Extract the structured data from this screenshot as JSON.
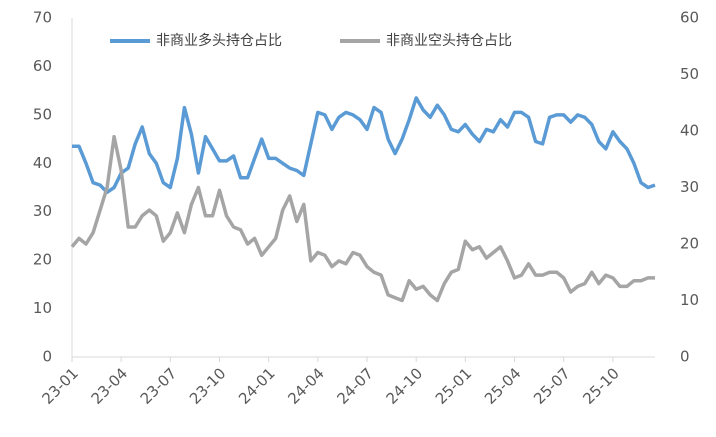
{
  "chart_data": {
    "type": "line",
    "categories": [
      "23-01",
      null,
      null,
      null,
      null,
      null,
      null,
      "23-04",
      null,
      null,
      null,
      null,
      null,
      null,
      "23-07",
      null,
      null,
      null,
      null,
      null,
      null,
      "23-10",
      null,
      null,
      null,
      null,
      null,
      null,
      "24-01",
      null,
      null,
      null,
      null,
      null,
      null,
      "24-04",
      null,
      null,
      null,
      null,
      null,
      null,
      "24-07",
      null,
      null,
      null,
      null,
      null,
      null,
      "24-10",
      null,
      null,
      null,
      null,
      null,
      null,
      "25-01",
      null,
      null,
      null,
      null,
      null,
      null,
      "25-04",
      null,
      null,
      null,
      null,
      null,
      null,
      "25-07",
      null,
      null,
      null,
      null,
      null,
      null,
      "25-10",
      null,
      null,
      null,
      null,
      null,
      null
    ],
    "series": [
      {
        "name": "非商业多头持仓占比",
        "color": "#5b9bd5",
        "axis": "y",
        "values": [
          43.5,
          43.5,
          40,
          36,
          35.5,
          34,
          35,
          38,
          39,
          44,
          47.5,
          42,
          40,
          36,
          35,
          41,
          51.5,
          46,
          38,
          45.5,
          43,
          40.5,
          40.5,
          41.5,
          37,
          37,
          41,
          45,
          41,
          41,
          40,
          39,
          38.5,
          37.5,
          44,
          50.5,
          50,
          47,
          49.5,
          50.5,
          50,
          49,
          47,
          51.5,
          50.5,
          45,
          42,
          45,
          49,
          53.5,
          51,
          49.5,
          52,
          50,
          47,
          46.5,
          48,
          46,
          44.5,
          47,
          46.5,
          49,
          47.5,
          50.5,
          50.5,
          49.5,
          44.5,
          44,
          49.5,
          50,
          50,
          48.5,
          50,
          49.5,
          48,
          44.5,
          43,
          46.5,
          44.5,
          43,
          40,
          36,
          35,
          35.5
        ]
      },
      {
        "name": "非商业空头持仓占比",
        "color": "#a5a5a5",
        "axis": "y2",
        "values": [
          19.5,
          21,
          20,
          22,
          26,
          30,
          39,
          33,
          23,
          23,
          25,
          26,
          25,
          20.5,
          22,
          25.5,
          22,
          27,
          30,
          25,
          25,
          29.5,
          25,
          23,
          22.5,
          20,
          21,
          18,
          19.5,
          21,
          26,
          28.5,
          24,
          27,
          17,
          18.5,
          18,
          16,
          17,
          16.5,
          18.5,
          18,
          16,
          15,
          14.5,
          11,
          10.5,
          10,
          13.5,
          12,
          12.5,
          11,
          10,
          13,
          15,
          15.5,
          20.5,
          19,
          19.5,
          17.5,
          18.5,
          19.5,
          17,
          14,
          14.5,
          16.5,
          14.5,
          14.5,
          15,
          15,
          14,
          11.5,
          12.5,
          13,
          15,
          13,
          14.5,
          14,
          12.5,
          12.5,
          13.5,
          13.5,
          14,
          14
        ]
      }
    ],
    "ylim": [
      0,
      70
    ],
    "yticks": [
      0,
      10,
      20,
      30,
      40,
      50,
      60,
      70
    ],
    "y2lim": [
      0,
      60
    ],
    "y2ticks": [
      0,
      10,
      20,
      30,
      40,
      50,
      60
    ],
    "legend": "top"
  }
}
